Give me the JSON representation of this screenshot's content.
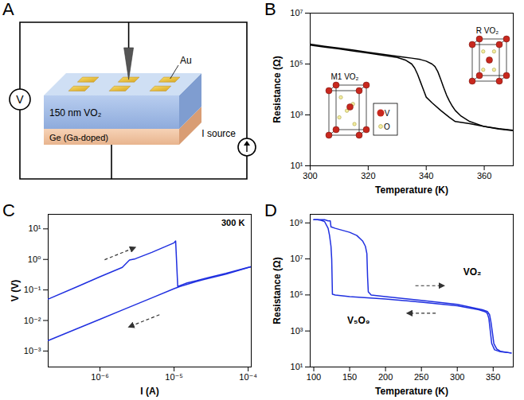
{
  "schematic": {
    "panel_label": "A",
    "voltmeter": "V",
    "film": "150 nm VO₂",
    "electrode": "Au",
    "substrate": "Ge (Ga-doped)",
    "source": "I source"
  },
  "chart_data": [
    {
      "panel_label": "B",
      "type": "line",
      "xlabel": "Temperature (K)",
      "ylabel": "Resistance (Ω)",
      "log": "y",
      "grid": false,
      "xlim": [
        300,
        370
      ],
      "ylim": [
        10,
        10000000.0
      ],
      "xticks": [
        300,
        320,
        340,
        360
      ],
      "yticks": [
        {
          "value": 10,
          "label": "10¹"
        },
        {
          "value": 1000,
          "label": "10³"
        },
        {
          "value": 100000,
          "label": "10⁵"
        },
        {
          "value": 10000000,
          "label": "10⁷"
        }
      ],
      "annotations": [
        "M1 VO₂",
        "R VO₂",
        "V",
        "O"
      ],
      "series": [
        {
          "color": "#000000",
          "x": [
            300,
            305,
            310,
            315,
            320,
            325,
            330,
            335,
            338,
            340,
            342,
            343,
            344,
            345,
            346,
            347,
            348,
            349,
            350,
            352,
            355,
            360,
            365,
            370
          ],
          "values": [
            600000.0,
            500000.0,
            420000.0,
            350000.0,
            290000.0,
            240000.0,
            200000.0,
            170000.0,
            150000.0,
            130000.0,
            100000.0,
            80000.0,
            50000.0,
            25000.0,
            12000.0,
            6000.0,
            3500.0,
            2200.0,
            1500.0,
            900,
            550,
            350,
            280,
            240
          ]
        },
        {
          "color": "#000000",
          "x": [
            300,
            305,
            310,
            315,
            320,
            325,
            330,
            333,
            335,
            336,
            337,
            338,
            339,
            340,
            342,
            345,
            348,
            350,
            355,
            360,
            365,
            370
          ],
          "values": [
            550000.0,
            460000.0,
            390000.0,
            320000.0,
            270000.0,
            220000.0,
            180000.0,
            140000.0,
            100000.0,
            70000.0,
            40000.0,
            20000.0,
            10000.0,
            5000.0,
            3000.0,
            1500.0,
            800,
            550,
            450,
            350,
            290,
            250
          ]
        }
      ]
    },
    {
      "panel_label": "C",
      "type": "line",
      "xlabel": "I (A)",
      "ylabel": "V (V)",
      "log": true,
      "grid": false,
      "xlim": [
        2e-07,
        0.00011
      ],
      "ylim": [
        0.0003,
        30
      ],
      "xticks": [
        {
          "value": 1e-06,
          "label": "10⁻⁶"
        },
        {
          "value": 1e-05,
          "label": "10⁻⁵"
        },
        {
          "value": 0.0001,
          "label": "10⁻⁴"
        }
      ],
      "yticks": [
        {
          "value": 0.001,
          "label": "10⁻³"
        },
        {
          "value": 0.01,
          "label": "10⁻²"
        },
        {
          "value": 0.1,
          "label": "10⁻¹"
        },
        {
          "value": 1,
          "label": "10⁰"
        },
        {
          "value": 10,
          "label": "10¹"
        }
      ],
      "annotations": [
        "300 K"
      ],
      "series": [
        {
          "color": "#2030e0",
          "x": [
            2e-07,
            5e-07,
            1e-06,
            2e-06,
            2.5e-06,
            3e-06,
            5e-06,
            1e-05,
            1.05e-05,
            1.12e-05,
            1.3e-05,
            1.5e-05,
            2e-05,
            3e-05,
            5e-05,
            0.0001,
            0.00011
          ],
          "values": [
            0.05,
            0.13,
            0.27,
            0.55,
            0.95,
            1.05,
            1.7,
            3.5,
            4.0,
            0.13,
            0.15,
            0.17,
            0.2,
            0.26,
            0.35,
            0.55,
            0.58
          ]
        },
        {
          "color": "#2030e0",
          "x": [
            0.00011,
            5e-05,
            2e-05,
            1.2e-05,
            1e-05,
            5e-06,
            2e-06,
            1e-06,
            5e-07,
            2e-07
          ],
          "values": [
            0.58,
            0.33,
            0.19,
            0.13,
            0.11,
            0.055,
            0.022,
            0.011,
            0.0055,
            0.0022
          ]
        }
      ]
    },
    {
      "panel_label": "D",
      "type": "line",
      "xlabel": "Temperature (K)",
      "ylabel": "Resistance (Ω)",
      "log": "y",
      "grid": false,
      "xlim": [
        95,
        378
      ],
      "ylim": [
        10,
        3000000000.0
      ],
      "xticks": [
        100,
        150,
        200,
        250,
        300,
        350
      ],
      "yticks": [
        {
          "value": 10,
          "label": "10¹"
        },
        {
          "value": 1000,
          "label": "10³"
        },
        {
          "value": 100000,
          "label": "10⁵"
        },
        {
          "value": 10000000,
          "label": "10⁷"
        },
        {
          "value": 1000000000,
          "label": "10⁹"
        }
      ],
      "annotations": [
        "VO₂",
        "V₅O₉"
      ],
      "series": [
        {
          "color": "#2030e0",
          "x": [
            375,
            360,
            352,
            348,
            346,
            344,
            342,
            340,
            338,
            330,
            300,
            250,
            200,
            150,
            130,
            126,
            125,
            124,
            122,
            120,
            115,
            110,
            105,
            100
          ],
          "values": [
            60,
            70,
            90,
            200,
            1000,
            5000,
            9000,
            11000,
            12000,
            15000,
            25000,
            40000,
            60000,
            80000,
            100000,
            110000,
            10000000.0,
            50000000.0,
            200000000.0,
            500000000.0,
            1200000000.0,
            1400000000.0,
            1500000000.0,
            1500000000.0
          ]
        },
        {
          "color": "#2030e0",
          "x": [
            100,
            115,
            120,
            123,
            124,
            130,
            150,
            160,
            168,
            172,
            174,
            175,
            176,
            180,
            200,
            250,
            300,
            335,
            342,
            345,
            347,
            349,
            351,
            355,
            360,
            375
          ],
          "values": [
            1500000000.0,
            1500000000.0,
            1300000000.0,
            1300000000.0,
            600000000.0,
            500000000.0,
            300000000.0,
            200000000.0,
            100000000.0,
            50000000.0,
            20000000.0,
            1000000.0,
            150000,
            100000,
            80000,
            50000,
            30000,
            15000,
            12000,
            8000,
            3000,
            800,
            200,
            100,
            75,
            60
          ]
        }
      ]
    }
  ]
}
